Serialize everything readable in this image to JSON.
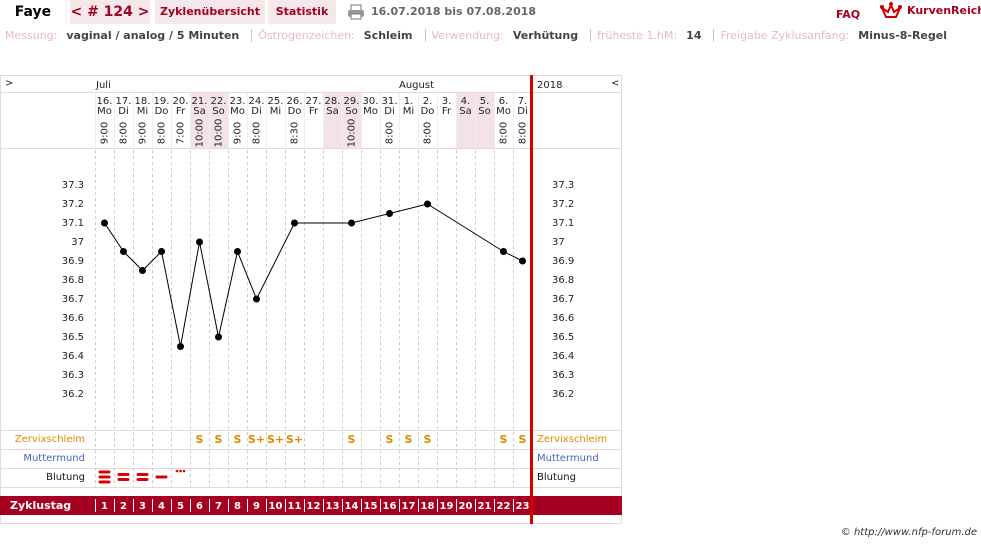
{
  "header": {
    "name": "Faye",
    "cycle_nav": "< # 124 >",
    "tabs": [
      "Zyklenübersicht",
      "Statistik"
    ],
    "date_range": "16.07.2018 bis 07.08.2018",
    "faq": "FAQ",
    "logo": "KurvenReich"
  },
  "settings": [
    {
      "label": "Messung:",
      "value": "vaginal / analog / 5 Minuten"
    },
    {
      "label": "Östrogenzeichen:",
      "value": "Schleim"
    },
    {
      "label": "Verwendung:",
      "value": "Verhütung"
    },
    {
      "label": "früheste 1.hM:",
      "value": "14"
    },
    {
      "label": "Freigabe Zyklusanfang:",
      "value": "Minus-8-Regel"
    }
  ],
  "chart_data": {
    "type": "line",
    "nav_prev": ">",
    "nav_next": "<",
    "year": "2018",
    "months": [
      "Juli",
      null,
      null,
      null,
      null,
      null,
      null,
      null,
      null,
      null,
      null,
      null,
      null,
      null,
      null,
      null,
      "August",
      null,
      null,
      null,
      null,
      null,
      null
    ],
    "dates": [
      "16.",
      "17.",
      "18.",
      "19.",
      "20.",
      "21.",
      "22.",
      "23.",
      "24.",
      "25.",
      "26.",
      "27.",
      "28.",
      "29.",
      "30.",
      "31.",
      "1.",
      "2.",
      "3.",
      "4.",
      "5.",
      "6.",
      "7."
    ],
    "weekdays": [
      "Mo",
      "Di",
      "Mi",
      "Do",
      "Fr",
      "Sa",
      "So",
      "Mo",
      "Di",
      "Mi",
      "Do",
      "Fr",
      "Sa",
      "So",
      "Mo",
      "Di",
      "Mi",
      "Do",
      "Fr",
      "Sa",
      "So",
      "Mo",
      "Di"
    ],
    "times": [
      "9:00",
      "8:00",
      "9:00",
      "8:00",
      "7:00",
      "10:00",
      "10:00",
      "9:00",
      "8:00",
      null,
      "8:30",
      null,
      null,
      "10:00",
      null,
      "8:00",
      null,
      "8:00",
      null,
      null,
      null,
      "8:00",
      "8:00"
    ],
    "measurement_days": [
      1,
      2,
      3,
      4,
      5,
      6,
      7,
      8,
      9,
      11,
      14,
      16,
      18,
      22,
      23
    ],
    "temperatures": [
      37.1,
      36.95,
      36.85,
      36.95,
      36.45,
      37.0,
      36.5,
      36.95,
      36.7,
      37.1,
      37.1,
      37.15,
      37.2,
      36.95,
      36.9
    ],
    "ylim": [
      36.1,
      37.4
    ],
    "yticks": [
      36.2,
      36.3,
      36.4,
      36.5,
      36.6,
      36.7,
      36.8,
      36.9,
      37,
      37.1,
      37.2,
      37.3
    ],
    "row_labels": {
      "cervix": "Zervixschleim",
      "cervix_os": "Muttermund",
      "bleeding": "Blutung"
    },
    "cervix": [
      null,
      null,
      null,
      null,
      null,
      "S",
      "S",
      "S",
      "S+",
      "S+",
      "S+",
      null,
      null,
      "S",
      null,
      "S",
      "S",
      "S",
      null,
      null,
      null,
      "S",
      "S"
    ],
    "bleeding": [
      3,
      2,
      2,
      1,
      0.5
    ],
    "cycle_day_label": "Zyklustag",
    "cycle_days": [
      1,
      2,
      3,
      4,
      5,
      6,
      7,
      8,
      9,
      10,
      11,
      12,
      13,
      14,
      15,
      16,
      17,
      18,
      19,
      20,
      21,
      22,
      23
    ]
  },
  "footer": "© http://www.nfp-forum.de"
}
